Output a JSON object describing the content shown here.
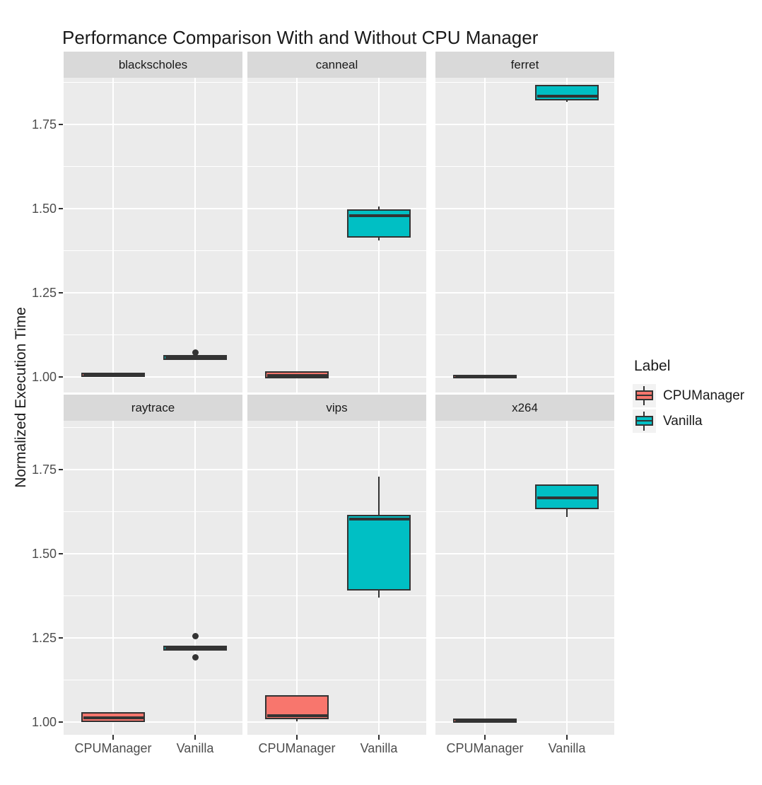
{
  "chart_data": {
    "type": "boxplot",
    "title": "Performance Comparison With and Without CPU Manager",
    "ylabel": "Normalized Execution Time",
    "xlabel": "",
    "x_categories": [
      "CPUManager",
      "Vanilla"
    ],
    "y_axis": {
      "major_ticks": [
        1.0,
        1.25,
        1.5,
        1.75
      ],
      "minor_ticks": [
        1.125,
        1.375,
        1.625,
        1.875
      ],
      "ylim": [
        0.955,
        1.89
      ],
      "grid": "on"
    },
    "facet_layout": {
      "rows": 2,
      "cols": 3
    },
    "legend": {
      "title": "Label",
      "position": "right",
      "entries": [
        {
          "label": "CPUManager",
          "color": "#F8766D"
        },
        {
          "label": "Vanilla",
          "color": "#00BFC4"
        }
      ]
    },
    "facets": [
      {
        "name": "blackscholes",
        "boxes": [
          {
            "group": "CPUManager",
            "whisker_low": 1.005,
            "q1": 1.005,
            "median": 1.006,
            "q3": 1.007,
            "whisker_high": 1.007,
            "outliers": []
          },
          {
            "group": "Vanilla",
            "whisker_low": 1.055,
            "q1": 1.055,
            "median": 1.057,
            "q3": 1.059,
            "whisker_high": 1.059,
            "outliers": [
              1.073
            ]
          }
        ]
      },
      {
        "name": "canneal",
        "boxes": [
          {
            "group": "CPUManager",
            "whisker_low": 1.0,
            "q1": 1.0,
            "median": 1.005,
            "q3": 1.012,
            "whisker_high": 1.012,
            "outliers": []
          },
          {
            "group": "Vanilla",
            "whisker_low": 1.405,
            "q1": 1.42,
            "median": 1.478,
            "q3": 1.492,
            "whisker_high": 1.507,
            "outliers": []
          }
        ]
      },
      {
        "name": "ferret",
        "boxes": [
          {
            "group": "CPUManager",
            "whisker_low": 1.0,
            "q1": 1.0,
            "median": 1.001,
            "q3": 1.002,
            "whisker_high": 1.002,
            "outliers": []
          },
          {
            "group": "Vanilla",
            "whisker_low": 1.818,
            "q1": 1.826,
            "median": 1.833,
            "q3": 1.862,
            "whisker_high": 1.862,
            "outliers": []
          }
        ]
      },
      {
        "name": "raytrace",
        "boxes": [
          {
            "group": "CPUManager",
            "whisker_low": 1.003,
            "q1": 1.005,
            "median": 1.012,
            "q3": 1.025,
            "whisker_high": 1.025,
            "outliers": []
          },
          {
            "group": "Vanilla",
            "whisker_low": 1.218,
            "q1": 1.218,
            "median": 1.219,
            "q3": 1.221,
            "whisker_high": 1.221,
            "outliers": [
              1.256,
              1.193
            ]
          }
        ]
      },
      {
        "name": "vips",
        "boxes": [
          {
            "group": "CPUManager",
            "whisker_low": 1.003,
            "q1": 1.013,
            "median": 1.018,
            "q3": 1.075,
            "whisker_high": 1.075,
            "outliers": []
          },
          {
            "group": "Vanilla",
            "whisker_low": 1.37,
            "q1": 1.395,
            "median": 1.602,
            "q3": 1.61,
            "whisker_high": 1.728,
            "outliers": []
          }
        ]
      },
      {
        "name": "x264",
        "boxes": [
          {
            "group": "CPUManager",
            "whisker_low": 1.004,
            "q1": 1.004,
            "median": 1.005,
            "q3": 1.006,
            "whisker_high": 1.006,
            "outliers": []
          },
          {
            "group": "Vanilla",
            "whisker_low": 1.61,
            "q1": 1.638,
            "median": 1.665,
            "q3": 1.7,
            "whisker_high": 1.7,
            "outliers": []
          }
        ]
      }
    ]
  }
}
